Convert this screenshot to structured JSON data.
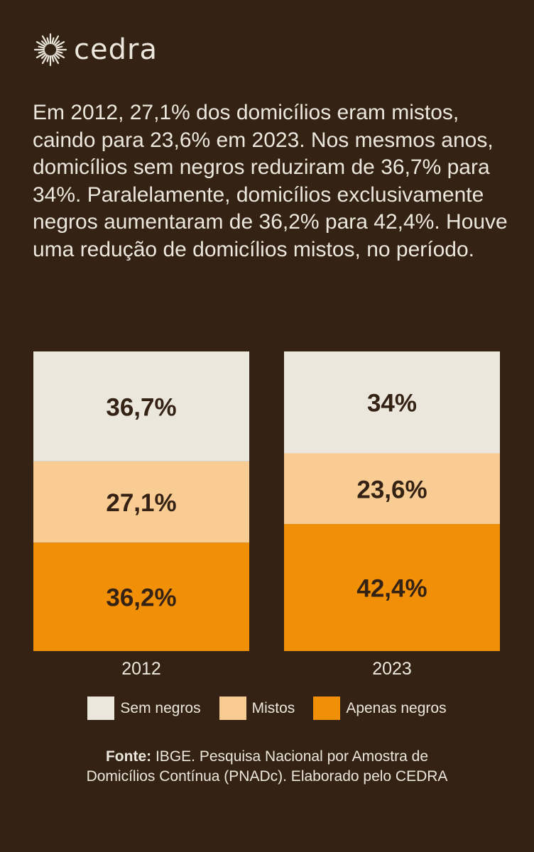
{
  "brand": {
    "name": "cedra",
    "icon": "sun-burst-icon"
  },
  "intro": "Em 2012, 27,1% dos domicílios eram mistos, caindo para 23,6% em 2023. Nos mesmos anos, domicílios sem negros reduziram de 36,7% para 34%. Paralelamente, domicílios exclusivamente negros aumentaram de 36,2% para 42,4%. Houve uma redução de domicílios mistos, no período.",
  "colors": {
    "background": "#342214",
    "sem_negros": "#ebe7dc",
    "mistos": "#f9cc93",
    "apenas_negros": "#f18f07",
    "label_text": "#342214"
  },
  "chart_data": {
    "type": "bar",
    "stacked": true,
    "normalized": true,
    "categories": [
      "2012",
      "2023"
    ],
    "series": [
      {
        "name": "Apenas negros",
        "values": [
          36.2,
          42.4
        ],
        "labels": [
          "36,2%",
          "42,4%"
        ],
        "color": "#f18f07"
      },
      {
        "name": "Mistos",
        "values": [
          27.1,
          23.6
        ],
        "labels": [
          "27,1%",
          "23,6%"
        ],
        "color": "#f9cc93"
      },
      {
        "name": "Sem negros",
        "values": [
          36.7,
          34.0
        ],
        "labels": [
          "36,7%",
          "34%"
        ],
        "color": "#ebe7dc"
      }
    ],
    "ylim": [
      0,
      100
    ],
    "grid": false,
    "legend_position": "bottom"
  },
  "legend": [
    {
      "label": "Sem negros",
      "color": "#ebe7dc"
    },
    {
      "label": "Mistos",
      "color": "#f9cc93"
    },
    {
      "label": "Apenas negros",
      "color": "#f18f07"
    }
  ],
  "source": {
    "label": "Fonte:",
    "line1": " IBGE. Pesquisa Nacional por Amostra de",
    "line2": "Domicílios Contínua (PNADc). Elaborado pelo CEDRA"
  }
}
